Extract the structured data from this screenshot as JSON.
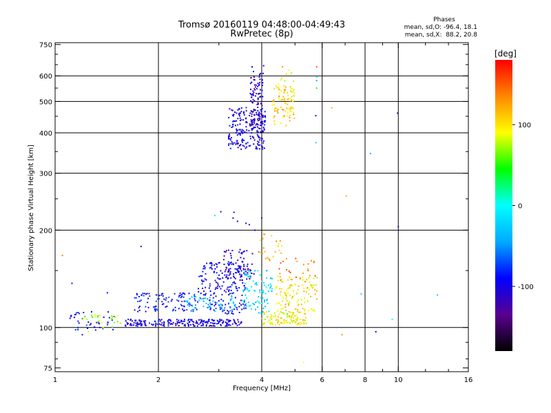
{
  "chart_data": {
    "type": "scatter",
    "title": "Tromsø 20160119 04:48:00-04:49:43",
    "subtitle": "RwPretec (8p)",
    "xlabel": "Frequency [MHz]",
    "ylabel": "Stationary phase Virtual Height [km]",
    "x_scale": "log",
    "y_scale": "log",
    "xlim": [
      1,
      16
    ],
    "ylim": [
      73,
      760
    ],
    "x_ticks": [
      1,
      2,
      4,
      6,
      8,
      10,
      16
    ],
    "y_ticks": [
      75,
      100,
      200,
      300,
      400,
      500,
      600,
      750
    ],
    "x_grid": [
      2,
      4,
      6,
      8,
      10
    ],
    "y_grid": [
      100,
      200,
      300,
      400,
      500,
      600
    ],
    "grid": true,
    "color_variable": "phase",
    "colorbar": {
      "label": "[deg]",
      "range": [
        -180,
        180
      ],
      "ticks": [
        -100,
        0,
        100
      ],
      "colors": [
        "#000000",
        "#5a0090",
        "#0000ff",
        "#00aaff",
        "#00ffff",
        "#00ff00",
        "#ffff00",
        "#ff8800",
        "#ff0000"
      ]
    },
    "phases_box": {
      "title": "Phases",
      "line_o": "mean, sd,O: -96.4, 18.1",
      "line_x": "mean, sd,X:  88.2, 20.8"
    },
    "clusters": [
      {
        "x_range": [
          3.2,
          4.1
        ],
        "y_range": [
          355,
          480
        ],
        "phase": -100,
        "count": 220
      },
      {
        "x_range": [
          3.7,
          4.05
        ],
        "y_range": [
          420,
          620
        ],
        "phase": -110,
        "count": 90
      },
      {
        "x_range": [
          4.3,
          5.0
        ],
        "y_range": [
          420,
          560
        ],
        "phase": 110,
        "count": 80
      },
      {
        "x_range": [
          4.4,
          5.0
        ],
        "y_range": [
          500,
          620
        ],
        "phase": 90,
        "count": 20
      },
      {
        "x_range": [
          1.1,
          1.5
        ],
        "y_range": [
          98,
          112
        ],
        "phase": -90,
        "count": 40
      },
      {
        "x_range": [
          1.2,
          1.6
        ],
        "y_range": [
          100,
          110
        ],
        "phase": 70,
        "count": 25
      },
      {
        "x_range": [
          1.6,
          3.5
        ],
        "y_range": [
          101,
          106
        ],
        "phase": -100,
        "count": 220
      },
      {
        "x_range": [
          1.7,
          2.6
        ],
        "y_range": [
          112,
          128
        ],
        "phase": -90,
        "count": 100
      },
      {
        "x_range": [
          2.6,
          3.6
        ],
        "y_range": [
          110,
          160
        ],
        "phase": -95,
        "count": 200
      },
      {
        "x_range": [
          3.1,
          3.8
        ],
        "y_range": [
          140,
          175
        ],
        "phase": -110,
        "count": 70
      },
      {
        "x_range": [
          2.4,
          3.4
        ],
        "y_range": [
          112,
          125
        ],
        "phase": -40,
        "count": 60
      },
      {
        "x_range": [
          3.5,
          4.3
        ],
        "y_range": [
          110,
          150
        ],
        "phase": -20,
        "count": 90
      },
      {
        "x_range": [
          4.0,
          5.4
        ],
        "y_range": [
          102,
          112
        ],
        "phase": 95,
        "count": 110
      },
      {
        "x_range": [
          4.4,
          5.8
        ],
        "y_range": [
          112,
          145
        ],
        "phase": 100,
        "count": 110
      },
      {
        "x_range": [
          4.5,
          5.9
        ],
        "y_range": [
          140,
          165
        ],
        "phase": 140,
        "count": 25
      },
      {
        "x_range": [
          3.9,
          4.6
        ],
        "y_range": [
          160,
          195
        ],
        "phase": 120,
        "count": 25
      }
    ],
    "points": [
      {
        "x": 1.05,
        "y": 167,
        "phase": 140
      },
      {
        "x": 1.12,
        "y": 137,
        "phase": -100
      },
      {
        "x": 1.42,
        "y": 128,
        "phase": -100
      },
      {
        "x": 1.78,
        "y": 178,
        "phase": -100
      },
      {
        "x": 1.25,
        "y": 97,
        "phase": 80
      },
      {
        "x": 1.2,
        "y": 95,
        "phase": -110
      },
      {
        "x": 1.35,
        "y": 100,
        "phase": -100
      },
      {
        "x": 1.55,
        "y": 103,
        "phase": 70
      },
      {
        "x": 3.04,
        "y": 228,
        "phase": -100
      },
      {
        "x": 3.32,
        "y": 227,
        "phase": -100
      },
      {
        "x": 3.4,
        "y": 213,
        "phase": -100
      },
      {
        "x": 3.3,
        "y": 218,
        "phase": -100
      },
      {
        "x": 3.6,
        "y": 210,
        "phase": -100
      },
      {
        "x": 3.68,
        "y": 208,
        "phase": -100
      },
      {
        "x": 4.0,
        "y": 218,
        "phase": -120
      },
      {
        "x": 3.82,
        "y": 200,
        "phase": -100
      },
      {
        "x": 2.92,
        "y": 222,
        "phase": -10
      },
      {
        "x": 5.78,
        "y": 640,
        "phase": 150
      },
      {
        "x": 5.78,
        "y": 595,
        "phase": 0
      },
      {
        "x": 5.78,
        "y": 580,
        "phase": -40
      },
      {
        "x": 5.78,
        "y": 550,
        "phase": 30
      },
      {
        "x": 5.75,
        "y": 452,
        "phase": -100
      },
      {
        "x": 5.75,
        "y": 373,
        "phase": -20
      },
      {
        "x": 6.4,
        "y": 478,
        "phase": 120
      },
      {
        "x": 7.05,
        "y": 255,
        "phase": 120
      },
      {
        "x": 8.3,
        "y": 345,
        "phase": -40
      },
      {
        "x": 9.95,
        "y": 460,
        "phase": -120
      },
      {
        "x": 10.0,
        "y": 205,
        "phase": -120
      },
      {
        "x": 7.8,
        "y": 127,
        "phase": -20
      },
      {
        "x": 9.6,
        "y": 106,
        "phase": 0
      },
      {
        "x": 13.0,
        "y": 126,
        "phase": -30
      },
      {
        "x": 8.6,
        "y": 97,
        "phase": -100
      },
      {
        "x": 6.85,
        "y": 95,
        "phase": 130
      },
      {
        "x": 5.3,
        "y": 78,
        "phase": 90
      },
      {
        "x": 4.75,
        "y": 110,
        "phase": 40
      },
      {
        "x": 4.05,
        "y": 645,
        "phase": -100
      },
      {
        "x": 3.75,
        "y": 640,
        "phase": -100
      },
      {
        "x": 4.6,
        "y": 640,
        "phase": 130
      },
      {
        "x": 4.8,
        "y": 625,
        "phase": 90
      }
    ]
  }
}
